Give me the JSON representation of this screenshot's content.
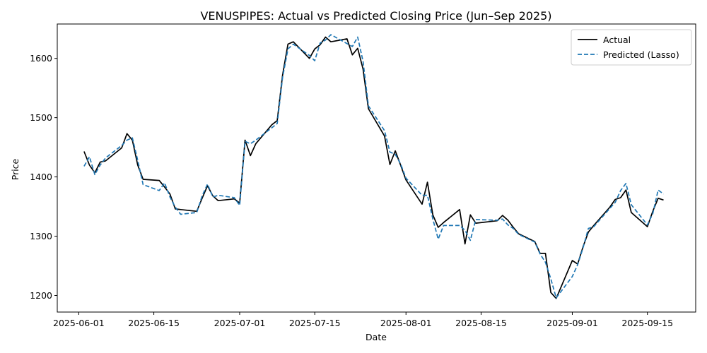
{
  "chart_data": {
    "type": "line",
    "title": "VENUSPIPES: Actual vs Predicted Closing Price (Jun–Sep 2025)",
    "xlabel": "Date",
    "ylabel": "Price",
    "xlim": [
      "2025-05-28",
      "2025-09-24"
    ],
    "ylim": [
      1172,
      1658
    ],
    "xticks": [
      "2025-06-01",
      "2025-06-15",
      "2025-07-01",
      "2025-07-15",
      "2025-08-01",
      "2025-08-15",
      "2025-09-01",
      "2025-09-15"
    ],
    "yticks": [
      1200,
      1300,
      1400,
      1500,
      1600
    ],
    "grid": false,
    "legend_position": "top-right",
    "x": [
      "2025-06-02",
      "2025-06-03",
      "2025-06-04",
      "2025-06-05",
      "2025-06-06",
      "2025-06-09",
      "2025-06-10",
      "2025-06-11",
      "2025-06-12",
      "2025-06-13",
      "2025-06-16",
      "2025-06-17",
      "2025-06-18",
      "2025-06-19",
      "2025-06-20",
      "2025-06-23",
      "2025-06-24",
      "2025-06-25",
      "2025-06-26",
      "2025-06-27",
      "2025-06-30",
      "2025-07-01",
      "2025-07-02",
      "2025-07-03",
      "2025-07-04",
      "2025-07-07",
      "2025-07-08",
      "2025-07-09",
      "2025-07-10",
      "2025-07-11",
      "2025-07-14",
      "2025-07-15",
      "2025-07-16",
      "2025-07-17",
      "2025-07-18",
      "2025-07-21",
      "2025-07-22",
      "2025-07-23",
      "2025-07-24",
      "2025-07-25",
      "2025-07-28",
      "2025-07-29",
      "2025-07-30",
      "2025-07-31",
      "2025-08-01",
      "2025-08-04",
      "2025-08-05",
      "2025-08-06",
      "2025-08-07",
      "2025-08-08",
      "2025-08-11",
      "2025-08-12",
      "2025-08-13",
      "2025-08-14",
      "2025-08-18",
      "2025-08-19",
      "2025-08-20",
      "2025-08-21",
      "2025-08-22",
      "2025-08-25",
      "2025-08-26",
      "2025-08-27",
      "2025-08-28",
      "2025-08-29",
      "2025-09-01",
      "2025-09-02",
      "2025-09-03",
      "2025-09-04",
      "2025-09-05",
      "2025-09-08",
      "2025-09-09",
      "2025-09-10",
      "2025-09-11",
      "2025-09-12",
      "2025-09-15",
      "2025-09-16",
      "2025-09-17",
      "2025-09-18"
    ],
    "series": [
      {
        "name": "Actual",
        "color": "#000000",
        "style": "solid",
        "values": [
          1443,
          1420,
          1407,
          1425,
          1427,
          1449,
          1473,
          1462,
          1420,
          1396,
          1394,
          1383,
          1371,
          1346,
          1345,
          1342,
          1364,
          1385,
          1368,
          1360,
          1363,
          1356,
          1462,
          1436,
          1456,
          1488,
          1495,
          1572,
          1624,
          1628,
          1600,
          1616,
          1623,
          1636,
          1628,
          1633,
          1606,
          1617,
          1582,
          1515,
          1469,
          1421,
          1444,
          1420,
          1395,
          1354,
          1391,
          1336,
          1315,
          1323,
          1345,
          1287,
          1336,
          1322,
          1326,
          1335,
          1327,
          1315,
          1304,
          1291,
          1271,
          1271,
          1205,
          1195,
          1259,
          1253,
          1282,
          1307,
          1318,
          1349,
          1362,
          1365,
          1378,
          1340,
          1316,
          1342,
          1364,
          1361
        ]
      },
      {
        "name": "Predicted (Lasso)",
        "color": "#1f77b4",
        "style": "dashed",
        "values": [
          1418,
          1434,
          1404,
          1420,
          1432,
          1453,
          1462,
          1466,
          1428,
          1387,
          1377,
          1390,
          1366,
          1349,
          1337,
          1340,
          1368,
          1388,
          1366,
          1369,
          1365,
          1352,
          1460,
          1456,
          1462,
          1483,
          1490,
          1568,
          1616,
          1624,
          1605,
          1596,
          1626,
          1631,
          1640,
          1625,
          1620,
          1636,
          1595,
          1520,
          1478,
          1442,
          1438,
          1422,
          1398,
          1369,
          1369,
          1329,
          1295,
          1318,
          1318,
          1310,
          1293,
          1328,
          1327,
          1329,
          1319,
          1313,
          1303,
          1290,
          1270,
          1256,
          1228,
          1196,
          1232,
          1252,
          1280,
          1313,
          1316,
          1347,
          1357,
          1377,
          1389,
          1353,
          1319,
          1338,
          1378,
          1371
        ]
      }
    ]
  }
}
